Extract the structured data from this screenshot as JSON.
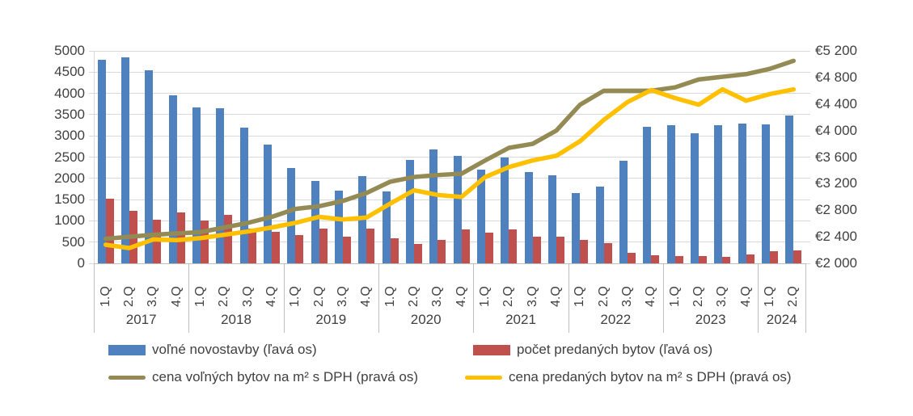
{
  "chart_data": {
    "type": "bar",
    "title": "",
    "grid": true,
    "legend_position": "bottom",
    "x_axis": {
      "quarter_labels": [
        "1.Q",
        "2.Q",
        "3.Q",
        "4.Q"
      ],
      "year_groups": [
        {
          "label": "2017",
          "quarters": 4
        },
        {
          "label": "2018",
          "quarters": 4
        },
        {
          "label": "2019",
          "quarters": 4
        },
        {
          "label": "2020",
          "quarters": 4
        },
        {
          "label": "2021",
          "quarters": 4
        },
        {
          "label": "2022",
          "quarters": 4
        },
        {
          "label": "2023",
          "quarters": 4
        },
        {
          "label": "2024",
          "quarters": 2
        }
      ]
    },
    "left_axis": {
      "min": 0,
      "max": 5000,
      "step": 500,
      "ticks": [
        "0",
        "500",
        "1000",
        "1500",
        "2000",
        "2500",
        "3000",
        "3500",
        "4000",
        "4500",
        "5000"
      ]
    },
    "right_axis": {
      "min": 2000,
      "max": 5200,
      "step": 400,
      "ticks": [
        "€2 000",
        "€2 400",
        "€2 800",
        "€3 200",
        "€3 600",
        "€4 000",
        "€4 400",
        "€4 800",
        "€5 200"
      ]
    },
    "series": [
      {
        "key": "volne-novostavby",
        "name": "voľné novostavby (ľavá os)",
        "type": "bar",
        "axis": "left",
        "color": "#4e81bd",
        "values": [
          4800,
          4850,
          4550,
          3950,
          3660,
          3650,
          3200,
          2790,
          2250,
          1930,
          1720,
          2050,
          1700,
          2430,
          2680,
          2530,
          2200,
          2500,
          2150,
          2080,
          1650,
          1810,
          2410,
          3220,
          3260,
          3060,
          3260,
          3280,
          3270,
          3480
        ]
      },
      {
        "key": "pocet-predanych-bytov",
        "name": "počet predaných bytov (ľavá os)",
        "type": "bar",
        "axis": "left",
        "color": "#c0504d",
        "values": [
          1530,
          1240,
          1030,
          1190,
          1000,
          1150,
          810,
          740,
          670,
          820,
          630,
          820,
          580,
          450,
          550,
          790,
          720,
          800,
          630,
          620,
          560,
          480,
          240,
          190,
          170,
          170,
          150,
          200,
          280,
          300
        ]
      },
      {
        "key": "cena-volnych-bytov",
        "name": "cena voľných bytov na m² s DPH (pravá os)",
        "type": "line",
        "axis": "right",
        "color": "#948a54",
        "values": [
          2370,
          2400,
          2430,
          2450,
          2470,
          2540,
          2610,
          2700,
          2820,
          2860,
          2940,
          3060,
          3230,
          3300,
          3330,
          3350,
          3550,
          3740,
          3800,
          4000,
          4390,
          4600,
          4600,
          4600,
          4650,
          4770,
          4810,
          4850,
          4930,
          5050
        ]
      },
      {
        "key": "cena-predanych-bytov",
        "name": "cena predaných bytov na m² s  DPH (pravá os)",
        "type": "line",
        "axis": "right",
        "color": "#ffc000",
        "values": [
          2280,
          2230,
          2360,
          2350,
          2380,
          2430,
          2480,
          2540,
          2610,
          2700,
          2660,
          2690,
          2900,
          3100,
          3030,
          3000,
          3300,
          3450,
          3550,
          3620,
          3840,
          4160,
          4430,
          4610,
          4490,
          4390,
          4620,
          4450,
          4550,
          4620
        ]
      }
    ]
  },
  "legend": {
    "items": [
      {
        "key": "volne-novostavby",
        "label": "voľné novostavby (ľavá os)",
        "color": "#4e81bd",
        "swatch": "bar"
      },
      {
        "key": "pocet-predanych-bytov",
        "label": "počet predaných bytov (ľavá os)",
        "color": "#c0504d",
        "swatch": "bar"
      },
      {
        "key": "cena-volnych-bytov",
        "label": "cena voľných bytov na m² s DPH (pravá os)",
        "color": "#948a54",
        "swatch": "line"
      },
      {
        "key": "cena-predanych-bytov",
        "label": "cena predaných bytov na m² s  DPH (pravá os)",
        "color": "#ffc000",
        "swatch": "line"
      }
    ]
  }
}
